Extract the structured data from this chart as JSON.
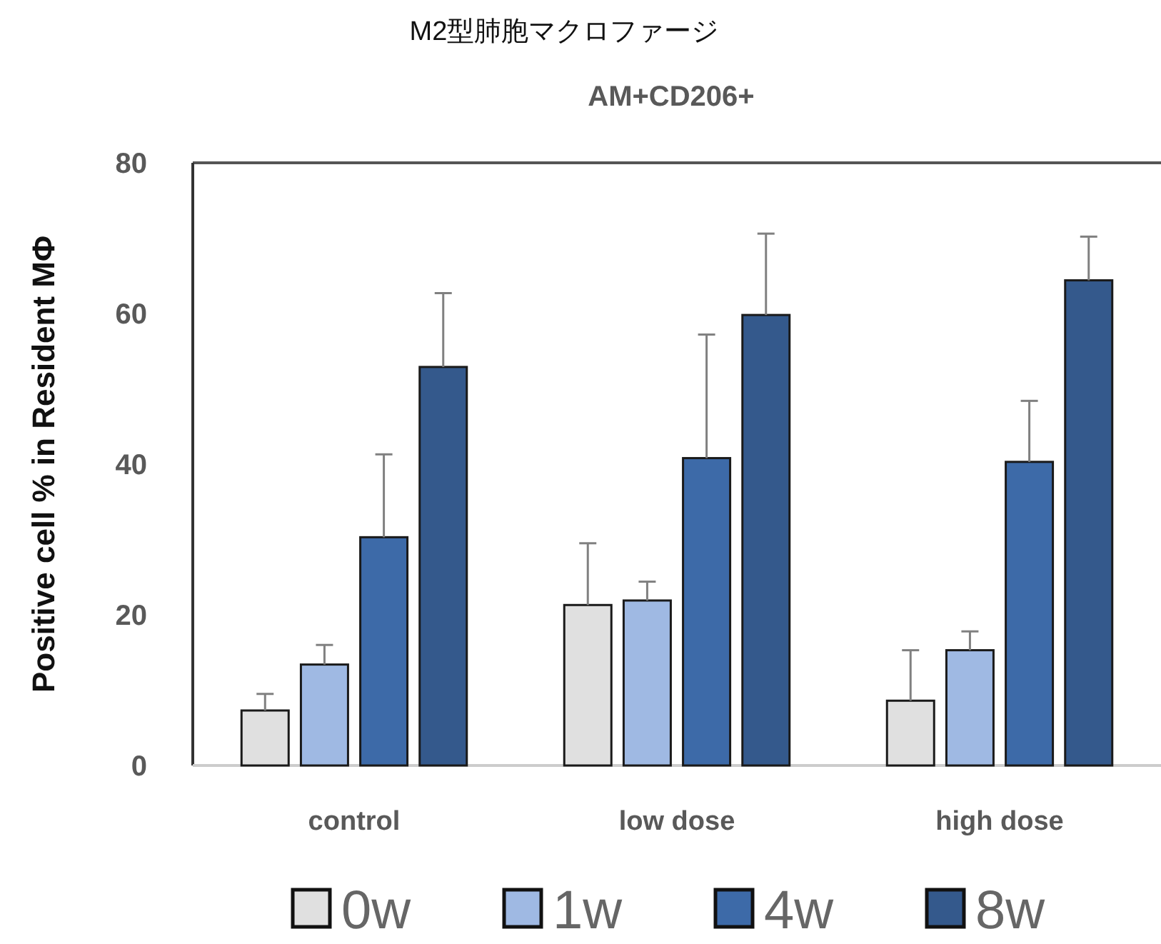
{
  "chart_data": {
    "type": "bar",
    "title": "M2型肺胞マクロファージ",
    "subtitle": "AM+CD206+",
    "ylabel": "Positive cell % in Resident MΦ",
    "categories": [
      "control",
      "low dose",
      "high dose"
    ],
    "series": [
      {
        "name": "0w",
        "color": "#e0e0e0",
        "values": [
          7.3,
          21.3,
          8.6
        ],
        "errors": [
          [
            7.3,
            9.5
          ],
          [
            21.3,
            29.5
          ],
          [
            8.6,
            15.3
          ]
        ]
      },
      {
        "name": "1w",
        "color": "#9fb9e3",
        "values": [
          13.4,
          21.9,
          15.3
        ],
        "errors": [
          [
            13.4,
            16.0
          ],
          [
            21.9,
            24.4
          ],
          [
            15.3,
            17.8
          ]
        ]
      },
      {
        "name": "4w",
        "color": "#3d6aa8",
        "values": [
          30.3,
          40.8,
          40.3
        ],
        "errors": [
          [
            30.3,
            41.3
          ],
          [
            40.8,
            57.2
          ],
          [
            40.3,
            48.4
          ]
        ]
      },
      {
        "name": "8w",
        "color": "#34598c",
        "values": [
          52.9,
          59.8,
          64.4
        ],
        "errors": [
          [
            52.9,
            62.7
          ],
          [
            59.8,
            70.6
          ],
          [
            64.4,
            70.2
          ]
        ]
      }
    ],
    "ylim": [
      0,
      80
    ],
    "yticks": [
      0,
      20,
      40,
      60,
      80
    ],
    "legend": "bottom"
  }
}
